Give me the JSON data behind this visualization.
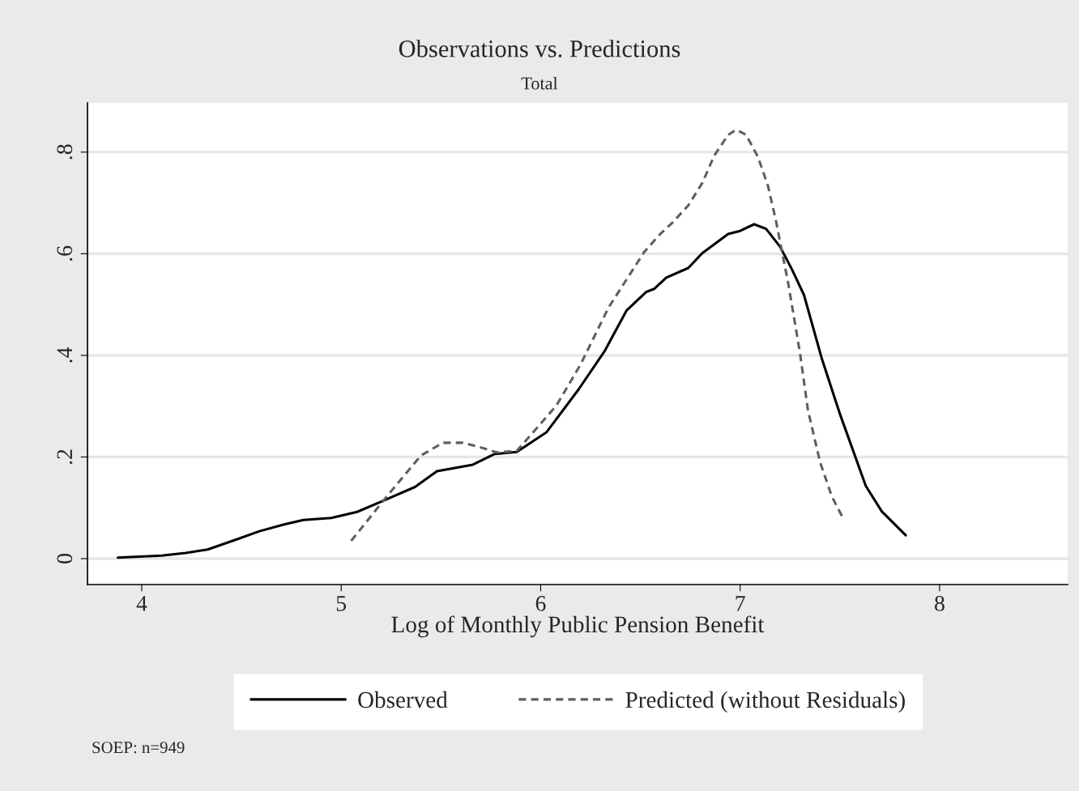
{
  "chart_data": {
    "type": "line",
    "title": "Observations vs. Predictions",
    "subtitle": "Total",
    "xlabel": "Log of Monthly Public Pension Benefit",
    "annotations": [
      "SOEP: n=949"
    ],
    "series": [
      {
        "name": "Observed",
        "color": "#000000",
        "line_style": "solid",
        "x": [
          3.88,
          4.1,
          4.22,
          4.33,
          4.47,
          4.59,
          4.71,
          4.81,
          4.95,
          5.08,
          5.2,
          5.37,
          5.48,
          5.66,
          5.77,
          5.88,
          6.03,
          6.19,
          6.32,
          6.43,
          6.53,
          6.57,
          6.63,
          6.74,
          6.81,
          6.94,
          7.0,
          7.07,
          7.13,
          7.2,
          7.26,
          7.32,
          7.41,
          7.5,
          7.63,
          7.71,
          7.83
        ],
        "values": [
          0.002,
          0.006,
          0.011,
          0.018,
          0.037,
          0.054,
          0.067,
          0.076,
          0.08,
          0.092,
          0.112,
          0.141,
          0.172,
          0.185,
          0.206,
          0.21,
          0.249,
          0.333,
          0.408,
          0.488,
          0.525,
          0.531,
          0.553,
          0.572,
          0.601,
          0.639,
          0.645,
          0.658,
          0.649,
          0.614,
          0.569,
          0.519,
          0.393,
          0.285,
          0.143,
          0.093,
          0.046
        ]
      },
      {
        "name": "Predicted (without Residuals)",
        "color": "#5f5f5f",
        "line_style": "dashed",
        "x": [
          5.05,
          5.24,
          5.4,
          5.51,
          5.61,
          5.69,
          5.78,
          5.88,
          5.97,
          6.08,
          6.2,
          6.34,
          6.52,
          6.6,
          6.66,
          6.74,
          6.81,
          6.87,
          6.94,
          6.98,
          7.03,
          7.09,
          7.14,
          7.18,
          7.24,
          7.3,
          7.34,
          7.4,
          7.46,
          7.51
        ],
        "values": [
          0.035,
          0.128,
          0.203,
          0.228,
          0.228,
          0.22,
          0.209,
          0.212,
          0.252,
          0.302,
          0.382,
          0.494,
          0.604,
          0.639,
          0.661,
          0.695,
          0.739,
          0.793,
          0.834,
          0.844,
          0.834,
          0.79,
          0.733,
          0.664,
          0.544,
          0.405,
          0.292,
          0.191,
          0.122,
          0.084
        ]
      }
    ],
    "xlim": [
      3.728,
      8.642
    ],
    "ylim": [
      -0.051,
      0.897
    ],
    "xticks": [
      4,
      5,
      6,
      7,
      8
    ],
    "yticks": [
      {
        "value": 0,
        "label": "0"
      },
      {
        "value": 0.2,
        "label": ".2"
      },
      {
        "value": 0.4,
        "label": ".4"
      },
      {
        "value": 0.6,
        "label": ".6"
      },
      {
        "value": 0.8,
        "label": ".8"
      }
    ],
    "grid": "y",
    "legend": "bottom"
  }
}
